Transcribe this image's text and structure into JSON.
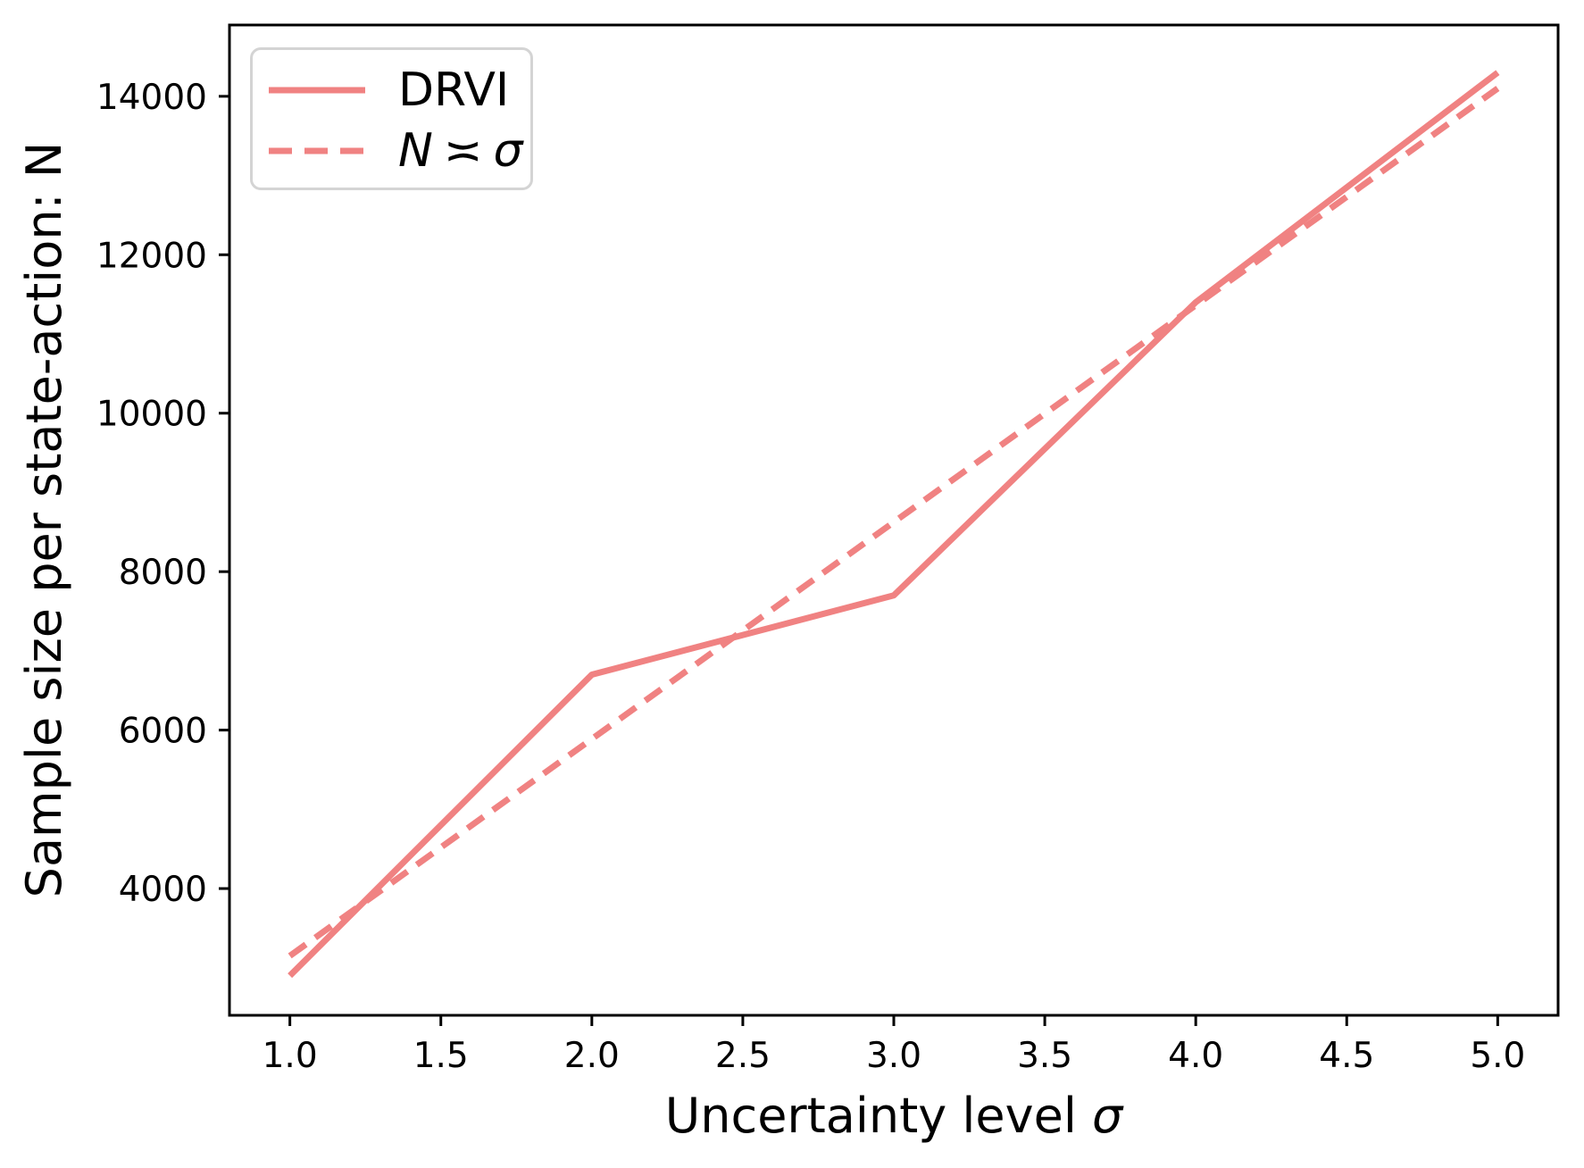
{
  "chart_data": {
    "type": "line",
    "title": "",
    "xlabel": {
      "prefix": "Uncertainty level ",
      "symbol": "σ"
    },
    "ylabel": "Sample size per state-action: N",
    "x_ticks": [
      "1.0",
      "1.5",
      "2.0",
      "2.5",
      "3.0",
      "3.5",
      "4.0",
      "4.5",
      "5.0"
    ],
    "y_ticks": [
      "4000",
      "6000",
      "8000",
      "10000",
      "12000",
      "14000"
    ],
    "xlim": [
      0.8,
      5.2
    ],
    "ylim": [
      2400,
      14900
    ],
    "grid": false,
    "legend_position": "upper-left",
    "line_color": "#f08282",
    "series": [
      {
        "name": "DRVI",
        "style": "solid",
        "x": [
          1,
          2,
          3,
          4,
          5
        ],
        "y": [
          2900,
          6700,
          7700,
          11400,
          14300
        ]
      },
      {
        "name": "N ≍ σ",
        "label_parts": {
          "var": "N",
          "relation": "≍",
          "symbol": "σ"
        },
        "style": "dashed",
        "x": [
          1,
          5
        ],
        "y": [
          3150,
          14100
        ]
      }
    ]
  }
}
